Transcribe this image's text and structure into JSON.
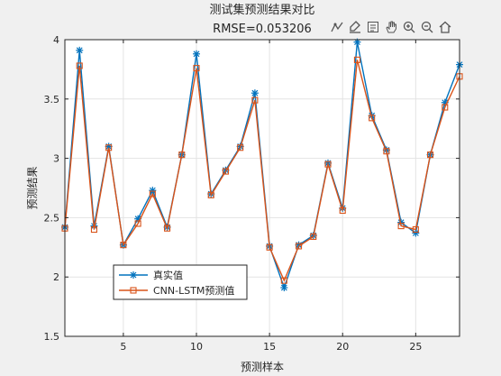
{
  "window": {
    "toolbar_icons": [
      "data-tips-icon",
      "brush-icon",
      "legend-export-icon",
      "pan-icon",
      "zoom-in-icon",
      "zoom-out-icon",
      "home-icon"
    ]
  },
  "chart_data": {
    "type": "line",
    "title": "测试集预测结果对比",
    "subtitle": "RMSE=0.053206",
    "xlabel": "预测样本",
    "ylabel": "预测结果",
    "xlim": [
      1,
      28
    ],
    "ylim": [
      1.5,
      4
    ],
    "xticks": [
      5,
      10,
      15,
      20,
      25
    ],
    "yticks": [
      1.5,
      2,
      2.5,
      3,
      3.5,
      4
    ],
    "ytick_labels": [
      "1.5",
      "2",
      "2.5",
      "3",
      "3.5",
      "4"
    ],
    "grid": true,
    "legend_position": "lower-left",
    "x": [
      1,
      2,
      3,
      4,
      5,
      6,
      7,
      8,
      9,
      10,
      11,
      12,
      13,
      14,
      15,
      16,
      17,
      18,
      19,
      20,
      21,
      22,
      23,
      24,
      25,
      26,
      27,
      28
    ],
    "series": [
      {
        "name": "真实值",
        "marker": "asterisk",
        "color": "#0072BD",
        "values": [
          2.42,
          3.91,
          2.43,
          3.1,
          2.27,
          2.49,
          2.73,
          2.42,
          3.03,
          3.88,
          2.7,
          2.9,
          3.1,
          3.55,
          2.26,
          1.91,
          2.27,
          2.35,
          2.96,
          2.58,
          3.98,
          3.36,
          3.07,
          2.46,
          2.37,
          3.03,
          3.47,
          3.79
        ]
      },
      {
        "name": "CNN-LSTM预测值",
        "marker": "square",
        "color": "#D95319",
        "values": [
          2.41,
          3.78,
          2.4,
          3.09,
          2.27,
          2.45,
          2.7,
          2.41,
          3.03,
          3.76,
          2.69,
          2.89,
          3.09,
          3.49,
          2.25,
          1.97,
          2.26,
          2.34,
          2.95,
          2.56,
          3.83,
          3.34,
          3.06,
          2.43,
          2.4,
          3.03,
          3.43,
          3.69
        ]
      }
    ]
  }
}
